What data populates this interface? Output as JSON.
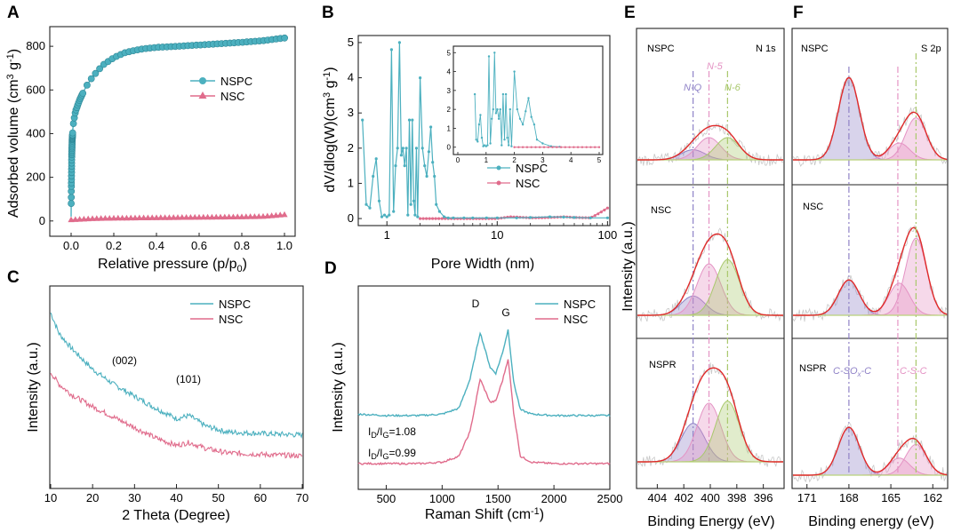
{
  "colors": {
    "nspc": "#4cb0bf",
    "nsc": "#e06c8c",
    "fit_total": "#e02a2a",
    "nq": "#8f82c7",
    "n5": "#e493c4",
    "n6": "#a9c86c"
  },
  "panels": {
    "A": {
      "label": "A",
      "xlabel": "Relative pressure (p/p",
      "xlabel_sub": "0",
      "xlabel_end": ")",
      "ylabel": "Adsorbed volume (cm",
      "ylabel_sup1": "3",
      "ylabel_mid": " g",
      "ylabel_sup2": "-1",
      "ylabel_end": ")"
    },
    "B": {
      "label": "B",
      "xlabel": "Pore Width (nm)",
      "ylabel": "dV/dlog(W)(cm",
      "ylabel_sup1": "3",
      "ylabel_mid": " g",
      "ylabel_sup2": "-1",
      "ylabel_end": ")"
    },
    "C": {
      "label": "C",
      "xlabel": "2 Theta (Degree)",
      "ylabel": "Intensity (a.u.)",
      "peak1": "(002)",
      "peak2": "(101)"
    },
    "D": {
      "label": "D",
      "xlabel": "Raman Shift (cm",
      "xlabel_sup": "-1",
      "xlabel_end": ")",
      "ylabel": "Intensity (a.u.)",
      "band_d": "D",
      "band_g": "G",
      "ratio1_pre": "I",
      "ratio1_s1": "D",
      "ratio1_mid": "/I",
      "ratio1_s2": "G",
      "ratio1_val": "=1.08",
      "ratio2_pre": "I",
      "ratio2_s1": "D",
      "ratio2_mid": "/I",
      "ratio2_s2": "G",
      "ratio2_val": "=0.99"
    },
    "E": {
      "label": "E",
      "xlabel": "Binding Energy (eV)",
      "ylabel": "Intensity (a.u.)",
      "region": "N 1s",
      "sub1": "NSPC",
      "sub2": "NSC",
      "sub3": "NSPR",
      "nq": "N-Q",
      "n5": "N-5",
      "n6": "N-6"
    },
    "F": {
      "label": "F",
      "xlabel": "Binding energy (eV)",
      "region": "S 2p",
      "sub1": "NSPC",
      "sub2": "NSC",
      "sub3": "NSPR",
      "cso": "C-SO",
      "cso_sub": "x",
      "cso_end": "-C",
      "csc": "C-S-C"
    }
  },
  "legend": {
    "nspc": "NSPC",
    "nsc": "NSC"
  },
  "chart_data": [
    {
      "panel": "A",
      "type": "line",
      "title": "",
      "xlabel": "Relative pressure (p/p0)",
      "ylabel": "Adsorbed volume (cm3 g-1)",
      "xlim": [
        -0.1,
        1.05
      ],
      "ylim": [
        -70,
        890
      ],
      "xticks": [
        "0.0",
        "0.2",
        "0.4",
        "0.6",
        "0.8",
        "1.0"
      ],
      "yticks": [
        "0",
        "200",
        "400",
        "600",
        "800"
      ],
      "series": [
        {
          "name": "NSPC",
          "x": [
            0.0,
            0.0005,
            0.001,
            0.002,
            0.003,
            0.005,
            0.008,
            0.012,
            0.02,
            0.04,
            0.07,
            0.1,
            0.15,
            0.2,
            0.25,
            0.3,
            0.35,
            0.4,
            0.5,
            0.6,
            0.7,
            0.8,
            0.9,
            1.0
          ],
          "y": [
            20,
            80,
            150,
            230,
            300,
            370,
            420,
            455,
            500,
            555,
            615,
            660,
            715,
            748,
            770,
            782,
            790,
            795,
            800,
            806,
            812,
            818,
            826,
            838
          ]
        },
        {
          "name": "NSC",
          "x": [
            0.0,
            0.1,
            0.2,
            0.3,
            0.4,
            0.5,
            0.6,
            0.7,
            0.8,
            0.9,
            1.0
          ],
          "y": [
            5,
            10,
            12,
            13,
            14,
            15,
            16,
            17,
            18,
            20,
            28
          ]
        }
      ]
    },
    {
      "panel": "B",
      "type": "line",
      "title": "",
      "xlabel": "Pore Width (nm)",
      "ylabel": "dV/dlog(W)(cm3 g-1)",
      "xscale": "log",
      "xlim": [
        0.55,
        105
      ],
      "ylim": [
        -0.2,
        5.2
      ],
      "xticks": [
        "1",
        "10",
        "100"
      ],
      "yticks": [
        "0",
        "1",
        "2",
        "3",
        "4",
        "5"
      ],
      "series": [
        {
          "name": "NSPC",
          "x": [
            0.6,
            0.65,
            0.7,
            0.75,
            0.8,
            0.85,
            0.9,
            0.95,
            1.0,
            1.05,
            1.1,
            1.15,
            1.2,
            1.25,
            1.3,
            1.35,
            1.4,
            1.45,
            1.5,
            1.55,
            1.6,
            1.65,
            1.7,
            1.75,
            1.8,
            1.85,
            1.9,
            2.0,
            2.1,
            2.2,
            2.3,
            2.4,
            2.5,
            2.6,
            2.7,
            2.8,
            3.0,
            3.3,
            3.6,
            4.0,
            5,
            6,
            8,
            10,
            15,
            20,
            30,
            40,
            50,
            70,
            100
          ],
          "y": [
            2.8,
            0.4,
            0.3,
            1.2,
            1.7,
            0.5,
            0.05,
            0.1,
            0.05,
            0.1,
            4.8,
            0.2,
            1.5,
            2.0,
            5.0,
            1.8,
            2.0,
            1.5,
            2.0,
            0.1,
            2.8,
            0.4,
            2.8,
            0.5,
            0.1,
            2.0,
            0.05,
            4.0,
            2.0,
            1.5,
            1.2,
            1.9,
            2.6,
            1.6,
            1.2,
            0.4,
            0.2,
            0.05,
            0.02,
            0.02,
            0.02,
            0.02,
            0.02,
            0.02,
            0.02,
            0.03,
            0.05,
            0.04,
            0.03,
            0.02,
            0.02
          ]
        },
        {
          "name": "NSC",
          "x": [
            2.0,
            3.0,
            4.0,
            5.0,
            7.0,
            10,
            13,
            20,
            30,
            40,
            50,
            70,
            100
          ],
          "y": [
            0.0,
            0.0,
            0.0,
            0.0,
            0.0,
            0.0,
            0.05,
            0.02,
            0.03,
            0.05,
            0.03,
            0.02,
            0.3
          ]
        }
      ],
      "inset": {
        "xlim": [
          0,
          5
        ],
        "ylim": [
          -0.2,
          5.2
        ],
        "xticks": [
          "0",
          "1",
          "2",
          "3",
          "4",
          "5"
        ],
        "yticks": [
          "0",
          "1",
          "2",
          "3",
          "4",
          "5"
        ]
      }
    },
    {
      "panel": "C",
      "type": "line",
      "title": "",
      "xlabel": "2 Theta (Degree)",
      "ylabel": "Intensity (a.u.)",
      "xlim": [
        10,
        70
      ],
      "xticks": [
        "10",
        "20",
        "30",
        "40",
        "50",
        "60",
        "70"
      ],
      "annotations": [
        {
          "text": "(002)",
          "x": 26
        },
        {
          "text": "(101)",
          "x": 43
        }
      ],
      "series": [
        {
          "name": "NSPC",
          "x": [
            10,
            12,
            15,
            20,
            25,
            30,
            35,
            40,
            43,
            47,
            52,
            60,
            70
          ],
          "y": [
            1.0,
            0.86,
            0.76,
            0.62,
            0.52,
            0.44,
            0.36,
            0.29,
            0.31,
            0.24,
            0.2,
            0.19,
            0.18
          ]
        },
        {
          "name": "NSC",
          "x": [
            10,
            12,
            15,
            20,
            25,
            30,
            35,
            40,
            43,
            47,
            52,
            60,
            70
          ],
          "y": [
            0.6,
            0.52,
            0.45,
            0.37,
            0.3,
            0.23,
            0.16,
            0.11,
            0.13,
            0.09,
            0.06,
            0.05,
            0.04
          ]
        }
      ]
    },
    {
      "panel": "D",
      "type": "line",
      "title": "",
      "xlabel": "Raman Shift (cm-1)",
      "ylabel": "Intensity (a.u.)",
      "xlim": [
        250,
        2500
      ],
      "xticks": [
        "500",
        "1000",
        "1500",
        "2000",
        "2500"
      ],
      "annotations": [
        {
          "text": "D",
          "x": 1340
        },
        {
          "text": "G",
          "x": 1590
        },
        {
          "text": "ID/IG=1.08"
        },
        {
          "text": "ID/IG=0.99"
        }
      ],
      "series": [
        {
          "name": "NSPC",
          "x": [
            250,
            500,
            800,
            1000,
            1150,
            1250,
            1340,
            1430,
            1480,
            1540,
            1590,
            1640,
            1700,
            1800,
            2000,
            2200,
            2500
          ],
          "y": [
            0.34,
            0.33,
            0.33,
            0.34,
            0.38,
            0.58,
            0.9,
            0.66,
            0.62,
            0.76,
            0.92,
            0.56,
            0.37,
            0.34,
            0.33,
            0.33,
            0.33
          ]
        },
        {
          "name": "NSC",
          "x": [
            250,
            500,
            800,
            1000,
            1150,
            1250,
            1340,
            1430,
            1480,
            1540,
            1590,
            1640,
            1700,
            1800,
            2000,
            2200,
            2500
          ],
          "y": [
            0.0,
            0.0,
            0.0,
            0.01,
            0.05,
            0.22,
            0.58,
            0.42,
            0.43,
            0.57,
            0.72,
            0.35,
            0.05,
            0.01,
            0.0,
            0.0,
            0.0
          ]
        }
      ]
    },
    {
      "panel": "E",
      "type": "area",
      "title": "N 1s",
      "xlabel": "Binding Energy (eV)",
      "ylabel": "Intensity (a.u.)",
      "xlim": [
        405.5,
        394.5
      ],
      "xticks": [
        "404",
        "402",
        "400",
        "398",
        "396"
      ],
      "peaks": {
        "N-Q": 401.3,
        "N-5": 400.1,
        "N-6": 398.7
      },
      "subpanels": [
        {
          "name": "NSPC",
          "components": [
            {
              "peak": "N-Q",
              "center": 401.3,
              "height": 0.1
            },
            {
              "peak": "N-5",
              "center": 400.1,
              "height": 0.22
            },
            {
              "peak": "N-6",
              "center": 398.7,
              "height": 0.22
            }
          ]
        },
        {
          "name": "NSC",
          "components": [
            {
              "peak": "N-Q",
              "center": 401.3,
              "height": 0.18
            },
            {
              "peak": "N-5",
              "center": 400.1,
              "height": 0.48
            },
            {
              "peak": "N-6",
              "center": 398.7,
              "height": 0.52
            }
          ]
        },
        {
          "name": "NSPR",
          "components": [
            {
              "peak": "N-Q",
              "center": 401.3,
              "height": 0.38
            },
            {
              "peak": "N-5",
              "center": 400.1,
              "height": 0.58
            },
            {
              "peak": "N-6",
              "center": 398.7,
              "height": 0.6
            }
          ]
        }
      ]
    },
    {
      "panel": "F",
      "type": "area",
      "title": "S 2p",
      "xlabel": "Binding energy (eV)",
      "xlim": [
        172,
        161
      ],
      "xticks": [
        "171",
        "168",
        "165",
        "162"
      ],
      "peaks": {
        "C-SOx-C": 168.0,
        "C-S-C": 164.5
      },
      "subpanels": [
        {
          "name": "NSPC",
          "components": [
            {
              "peak": "C-SOx-C",
              "center": 168.0,
              "height": 0.78
            },
            {
              "peak": "C-S-C",
              "center": 164.4,
              "height": 0.16
            },
            {
              "peak": "C-S-C",
              "center": 163.2,
              "height": 0.4
            }
          ]
        },
        {
          "name": "NSC",
          "components": [
            {
              "peak": "C-SOx-C",
              "center": 168.0,
              "height": 0.33
            },
            {
              "peak": "C-S-C",
              "center": 164.4,
              "height": 0.3
            },
            {
              "peak": "C-S-C",
              "center": 163.2,
              "height": 0.72
            }
          ]
        },
        {
          "name": "NSPR",
          "components": [
            {
              "peak": "C-SOx-C",
              "center": 168.0,
              "height": 0.42
            },
            {
              "peak": "C-S-C",
              "center": 164.4,
              "height": 0.15
            },
            {
              "peak": "C-S-C",
              "center": 163.2,
              "height": 0.27
            }
          ]
        }
      ]
    }
  ]
}
